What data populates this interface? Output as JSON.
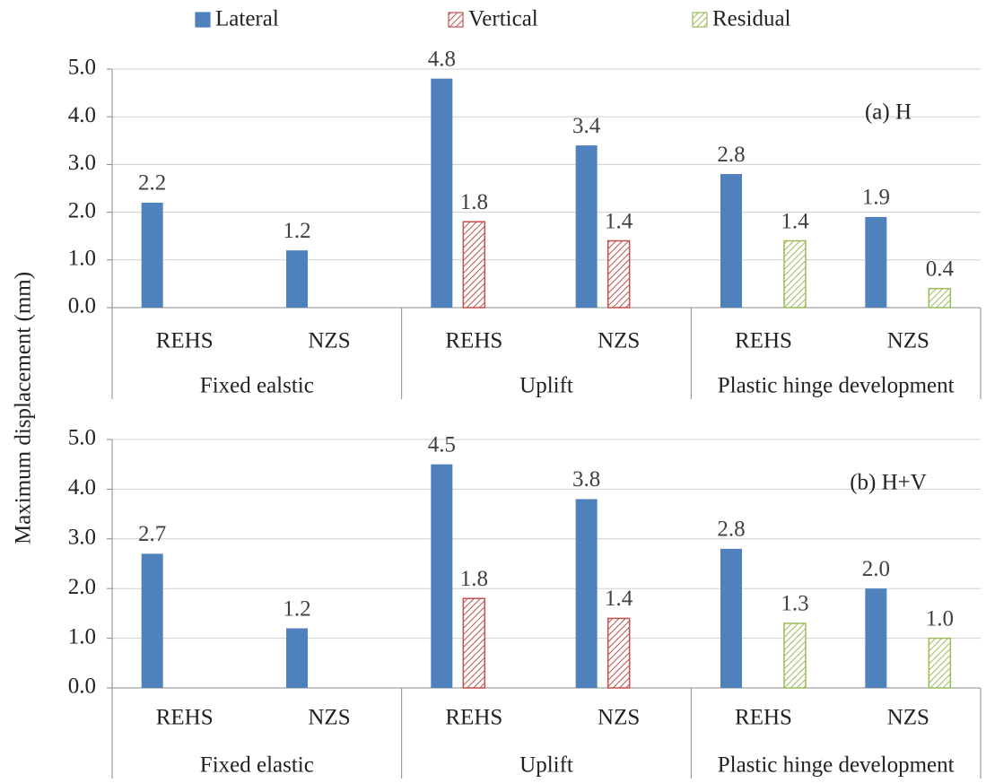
{
  "chart_data": [
    {
      "type": "bar",
      "annotation": "(a) H",
      "ylabel": "Maximum displacement (mm)",
      "categories": [
        "REHS",
        "NZS",
        "REHS",
        "NZS",
        "REHS",
        "NZS"
      ],
      "groups": [
        "Fixed ealstic",
        "Uplift",
        "Plastic hinge development"
      ],
      "series": [
        {
          "name": "Lateral",
          "color": "#4f81bd",
          "fill": "solid",
          "values": [
            2.2,
            1.2,
            4.8,
            3.4,
            2.8,
            1.9
          ],
          "value_labels": [
            "2.2",
            "1.2",
            "4.8",
            "3.4",
            "2.8",
            "1.9"
          ]
        },
        {
          "name": "Vertical",
          "color": "#c0504d",
          "fill": "hatch",
          "values": [
            null,
            null,
            1.8,
            1.4,
            null,
            null
          ],
          "value_labels": [
            null,
            null,
            "1.8",
            "1.4",
            null,
            null
          ]
        },
        {
          "name": "Residual",
          "color": "#9bbb59",
          "fill": "hatch",
          "values": [
            null,
            null,
            null,
            null,
            1.4,
            0.4
          ],
          "value_labels": [
            null,
            null,
            null,
            null,
            "1.4",
            "0.4"
          ]
        }
      ],
      "ylim": [
        0,
        5
      ],
      "yticks": [
        {
          "value": 0,
          "label": "0.0"
        },
        {
          "value": 1,
          "label": "1.0"
        },
        {
          "value": 2,
          "label": "2.0"
        },
        {
          "value": 3,
          "label": "3.0"
        },
        {
          "value": 4,
          "label": "4.0"
        },
        {
          "value": 5,
          "label": "5.0"
        }
      ],
      "grid": true
    },
    {
      "type": "bar",
      "annotation": "(b) H+V",
      "categories": [
        "REHS",
        "NZS",
        "REHS",
        "NZS",
        "REHS",
        "NZS"
      ],
      "groups": [
        "Fixed elastic",
        "Uplift",
        "Plastic hinge development"
      ],
      "series": [
        {
          "color": "#4f81bd",
          "fill": "solid",
          "values": [
            2.7,
            1.2,
            4.5,
            3.8,
            2.8,
            2.0
          ],
          "value_labels": [
            "2.7",
            "1.2",
            "4.5",
            "3.8",
            "2.8",
            "2.0"
          ]
        },
        {
          "color": "#c0504d",
          "fill": "hatch",
          "values": [
            null,
            null,
            1.8,
            1.4,
            null,
            null
          ],
          "value_labels": [
            null,
            null,
            "1.8",
            "1.4",
            null,
            null
          ]
        },
        {
          "color": "#9bbb59",
          "fill": "hatch",
          "values": [
            null,
            null,
            null,
            null,
            1.3,
            1.0
          ],
          "value_labels": [
            null,
            null,
            null,
            null,
            "1.3",
            "1.0"
          ]
        }
      ],
      "ylim": [
        0,
        5
      ],
      "yticks": [
        {
          "value": 0,
          "label": "0.0"
        },
        {
          "value": 1,
          "label": "1.0"
        },
        {
          "value": 2,
          "label": "2.0"
        },
        {
          "value": 3,
          "label": "3.0"
        },
        {
          "value": 4,
          "label": "4.0"
        },
        {
          "value": 5,
          "label": "5.0"
        }
      ],
      "grid": true
    }
  ]
}
